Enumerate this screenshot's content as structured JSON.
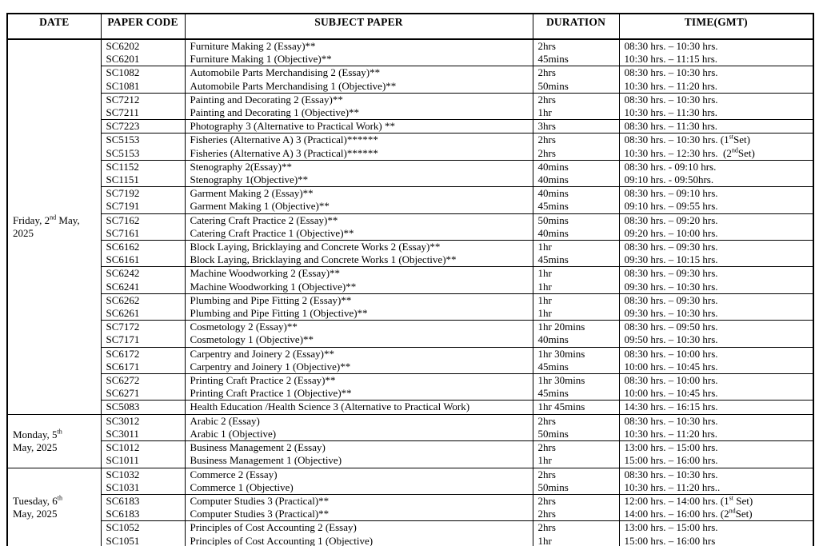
{
  "table": {
    "header": {
      "date": "DATE",
      "paper_code": "PAPER CODE",
      "subject": "SUBJECT PAPER",
      "duration": "DURATION",
      "time": "TIME(GMT)"
    },
    "groups": [
      {
        "date_lines": [
          [
            [
              "t",
              "Friday, 2"
            ],
            [
              "sup",
              "nd"
            ],
            [
              "t",
              " May,"
            ]
          ],
          [
            [
              "t",
              "2025"
            ]
          ]
        ],
        "subgroups": [
          {
            "rows": [
              {
                "code": "SC6202",
                "subject": "Furniture Making 2 (Essay)**",
                "duration": "2hrs",
                "time": "08:30 hrs. – 10:30 hrs."
              },
              {
                "code": "SC6201",
                "subject": "Furniture Making 1 (Objective)**",
                "duration": "45mins",
                "time": "10:30 hrs. – 11:15 hrs."
              }
            ]
          },
          {
            "rows": [
              {
                "code": "SC1082",
                "subject": "Automobile Parts Merchandising 2 (Essay)**",
                "duration": "2hrs",
                "time": "08:30 hrs. – 10:30 hrs."
              },
              {
                "code": "SC1081",
                "subject": "Automobile Parts Merchandising 1 (Objective)**",
                "duration": "50mins",
                "time": "10:30 hrs. – 11:20 hrs."
              }
            ]
          },
          {
            "rows": [
              {
                "code": "SC7212",
                "subject": "Painting and Decorating 2 (Essay)**",
                "duration": "2hrs",
                "time": "08:30 hrs. – 10:30 hrs."
              },
              {
                "code": "SC7211",
                "subject": "Painting and Decorating 1 (Objective)**",
                "duration": "1hr",
                "time": "10:30 hrs. – 11:30 hrs."
              }
            ]
          },
          {
            "rows": [
              {
                "code": "SC7223",
                "subject": "Photography 3 (Alternative to Practical Work) **",
                "duration": "3hrs",
                "time": "08:30 hrs. – 11:30 hrs."
              }
            ]
          },
          {
            "rows": [
              {
                "code": "SC5153",
                "subject": "Fisheries (Alternative A) 3 (Practical)******",
                "duration": "2hrs",
                "time": [
                  [
                    "t",
                    "08:30 hrs. – 10:30 hrs. (1"
                  ],
                  [
                    "sup",
                    "st"
                  ],
                  [
                    "t",
                    "Set)"
                  ]
                ]
              },
              {
                "code": "SC5153",
                "subject": "Fisheries (Alternative A) 3 (Practical)******",
                "duration": "2hrs",
                "time": [
                  [
                    "t",
                    "10:30 hrs. – 12:30 hrs.  (2"
                  ],
                  [
                    "sup",
                    "nd"
                  ],
                  [
                    "t",
                    "Set)"
                  ]
                ]
              }
            ]
          },
          {
            "rows": [
              {
                "code": "SC1152",
                "subject": "Stenography 2(Essay)**",
                "duration": "40mins",
                "time": "08:30 hrs. - 09:10 hrs."
              },
              {
                "code": "SC1151",
                "subject": "Stenography 1(Objective)**",
                "duration": "40mins",
                "time": "09:10 hrs. - 09:50hrs."
              }
            ]
          },
          {
            "rows": [
              {
                "code": "SC7192",
                "subject": "Garment Making 2 (Essay)**",
                "duration": "40mins",
                "time": "08:30 hrs. – 09:10 hrs."
              },
              {
                "code": "SC7191",
                "subject": "Garment Making 1 (Objective)**",
                "duration": "45mins",
                "time": "09:10 hrs. – 09:55 hrs."
              }
            ]
          },
          {
            "rows": [
              {
                "code": "SC7162",
                "subject": "Catering Craft Practice 2 (Essay)**",
                "duration": "50mins",
                "time": "08:30 hrs. – 09:20 hrs."
              },
              {
                "code": "SC7161",
                "subject": "Catering Craft Practice 1 (Objective)**",
                "duration": "40mins",
                "time": "09:20 hrs. – 10:00 hrs."
              }
            ]
          },
          {
            "rows": [
              {
                "code": "SC6162",
                "subject": "Block Laying, Bricklaying and Concrete Works 2 (Essay)**",
                "duration": "1hr",
                "time": "08:30 hrs. – 09:30 hrs."
              },
              {
                "code": "SC6161",
                "subject": "Block Laying, Bricklaying and Concrete Works 1 (Objective)**",
                "duration": "45mins",
                "time": "09:30 hrs. – 10:15 hrs."
              }
            ]
          },
          {
            "rows": [
              {
                "code": "SC6242",
                "subject": "Machine Woodworking 2 (Essay)**",
                "duration": "1hr",
                "time": "08:30 hrs. – 09:30 hrs."
              },
              {
                "code": "SC6241",
                "subject": "Machine Woodworking 1 (Objective)**",
                "duration": "1hr",
                "time": "09:30 hrs. – 10:30 hrs."
              }
            ]
          },
          {
            "rows": [
              {
                "code": "SC6262",
                "subject": "Plumbing and Pipe Fitting 2 (Essay)**",
                "duration": "1hr",
                "time": "08:30 hrs. – 09:30 hrs."
              },
              {
                "code": "SC6261",
                "subject": "Plumbing and Pipe Fitting 1 (Objective)**",
                "duration": "1hr",
                "time": "09:30 hrs. – 10:30 hrs."
              }
            ]
          },
          {
            "rows": [
              {
                "code": "SC7172",
                "subject": "Cosmetology 2 (Essay)**",
                "duration": "1hr 20mins",
                "time": "08:30 hrs. – 09:50 hrs."
              },
              {
                "code": "SC7171",
                "subject": "Cosmetology 1 (Objective)**",
                "duration": "40mins",
                "time": "09:50 hrs. – 10:30 hrs."
              }
            ]
          },
          {
            "rows": [
              {
                "code": "SC6172",
                "subject": "Carpentry and Joinery 2 (Essay)**",
                "duration": "1hr 30mins",
                "time": "08:30 hrs. – 10:00 hrs."
              },
              {
                "code": "SC6171",
                "subject": "Carpentry and Joinery 1 (Objective)**",
                "duration": "45mins",
                "time": "10:00 hrs. – 10:45 hrs."
              }
            ]
          },
          {
            "rows": [
              {
                "code": "SC6272",
                "subject": "Printing Craft Practice 2 (Essay)**",
                "duration": "1hr 30mins",
                "time": "08:30 hrs. – 10:00 hrs."
              },
              {
                "code": "SC6271",
                "subject": "Printing Craft Practice 1 (Objective)**",
                "duration": "45mins",
                "time": "10:00 hrs. – 10:45 hrs."
              }
            ]
          },
          {
            "rows": [
              {
                "code": "SC5083",
                "subject": "Health Education /Health Science 3 (Alternative to Practical Work)",
                "duration": "1hr 45mins",
                "time": "14:30 hrs. – 16:15 hrs."
              }
            ]
          }
        ]
      },
      {
        "date_lines": [
          [
            [
              "t",
              "Monday, 5"
            ],
            [
              "sup",
              "th"
            ]
          ],
          [
            [
              "t",
              "May, 2025"
            ]
          ]
        ],
        "subgroups": [
          {
            "rows": [
              {
                "code": "SC3012",
                "subject": "Arabic 2 (Essay)",
                "duration": "2hrs",
                "time": "08:30 hrs. – 10:30 hrs."
              },
              {
                "code": "SC3011",
                "subject": "Arabic 1 (Objective)",
                "duration": "50mins",
                "time": "10:30 hrs. – 11:20 hrs."
              }
            ]
          },
          {
            "rows": [
              {
                "code": "SC1012",
                "subject": "Business Management 2 (Essay)",
                "duration": "2hrs",
                "time": "13:00 hrs. – 15:00 hrs."
              },
              {
                "code": "SC1011",
                "subject": "Business Management 1 (Objective)",
                "duration": "1hr",
                "time": "15:00 hrs. – 16:00 hrs."
              }
            ]
          }
        ]
      },
      {
        "date_lines": [
          [
            [
              "t",
              "Tuesday, 6"
            ],
            [
              "sup",
              "th"
            ]
          ],
          [
            [
              "t",
              "May, 2025"
            ]
          ]
        ],
        "subgroups": [
          {
            "rows": [
              {
                "code": "SC1032",
                "subject": "Commerce 2 (Essay)",
                "duration": "2hrs",
                "time": "08:30 hrs. – 10:30 hrs."
              },
              {
                "code": "SC1031",
                "subject": "Commerce 1 (Objective)",
                "duration": "50mins",
                "time": "10:30 hrs. – 11:20 hrs.."
              }
            ]
          },
          {
            "rows": [
              {
                "code": "SC6183",
                "subject": "Computer Studies 3 (Practical)**",
                "duration": "2hrs",
                "time": [
                  [
                    "t",
                    "12:00 hrs. – 14:00 hrs. (1"
                  ],
                  [
                    "sup",
                    "st"
                  ],
                  [
                    "t",
                    " Set)"
                  ]
                ]
              },
              {
                "code": "SC6183",
                "subject": "Computer Studies 3 (Practical)**",
                "duration": "2hrs",
                "time": [
                  [
                    "t",
                    "14:00 hrs. – 16:00 hrs. (2"
                  ],
                  [
                    "sup",
                    "nd"
                  ],
                  [
                    "t",
                    "Set)"
                  ]
                ]
              }
            ]
          },
          {
            "rows": [
              {
                "code": "SC1052",
                "subject": "Principles of Cost Accounting 2 (Essay)",
                "duration": "2hrs",
                "time": "13:00 hrs. – 15:00 hrs."
              },
              {
                "code": "SC1051",
                "subject": "Principles of Cost Accounting 1 (Objective)",
                "duration": "1hr",
                "time": "15:00 hrs. – 16:00 hrs"
              }
            ]
          }
        ]
      }
    ]
  }
}
